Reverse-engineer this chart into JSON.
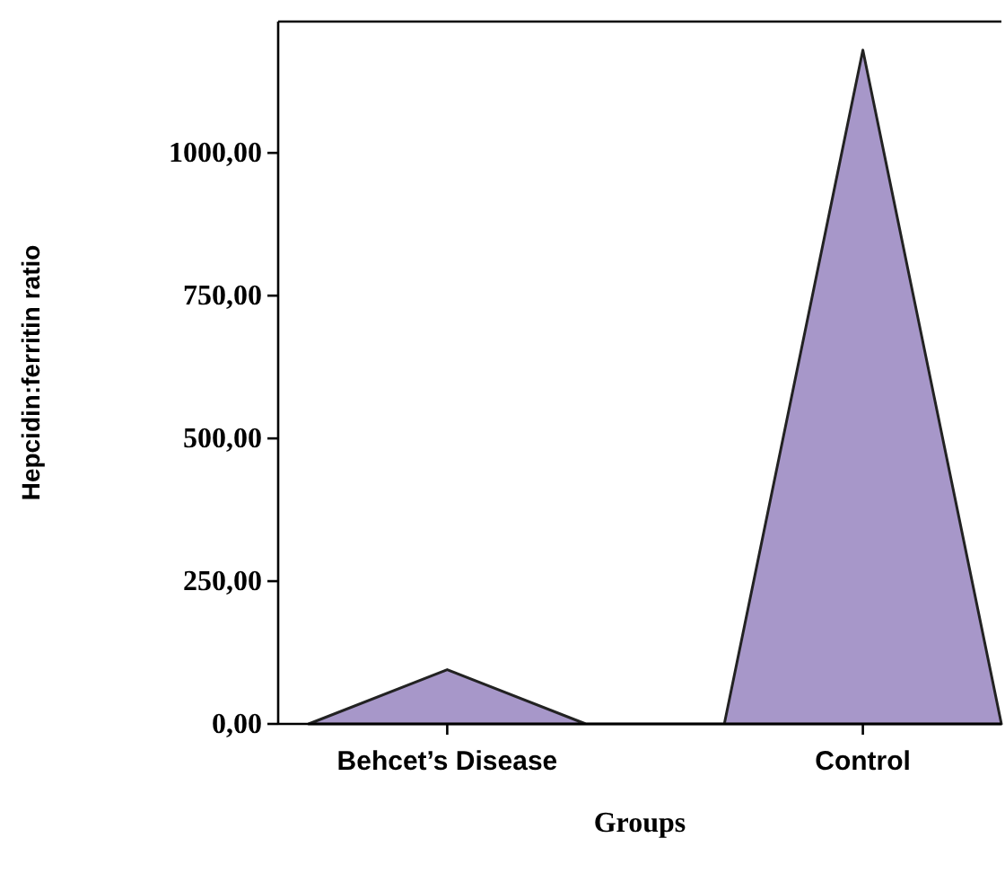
{
  "chart_data": {
    "type": "area",
    "categories": [
      null,
      "Behcet’s Disease",
      null,
      null,
      "Control",
      null
    ],
    "values": [
      0,
      95,
      0,
      0,
      1180,
      0
    ],
    "color": "#a797c9",
    "ylabel": "Hepcidin:ferritin ratio",
    "xlabel": "Groups",
    "ylim": [
      0,
      1230
    ],
    "yticks": [
      {
        "value": 0,
        "label": "0,00"
      },
      {
        "value": 250,
        "label": "250,00"
      },
      {
        "value": 500,
        "label": "500,00"
      },
      {
        "value": 750,
        "label": "750,00"
      },
      {
        "value": 1000,
        "label": "1000,00"
      }
    ],
    "grid": false
  }
}
